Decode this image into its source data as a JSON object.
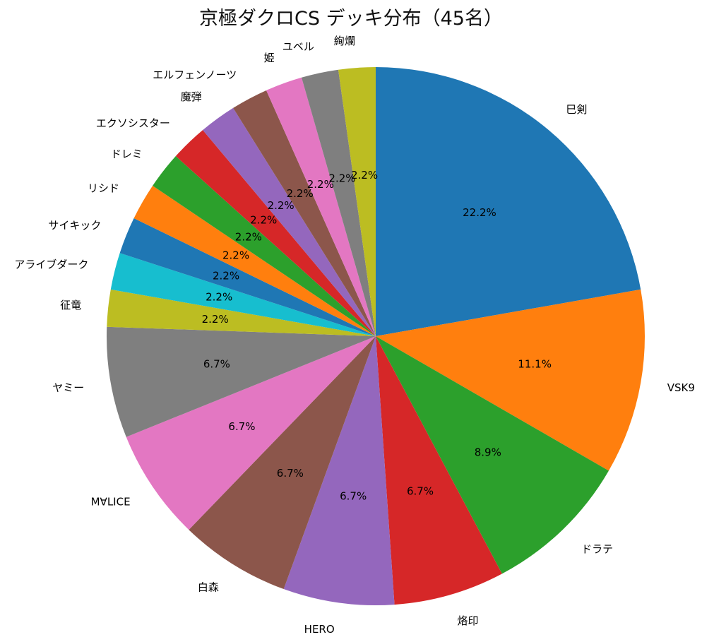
{
  "chart_data": {
    "type": "pie",
    "title": "京極ダクロCS デッキ分布（45名）",
    "total": 45,
    "start": "top",
    "direction": "clockwise",
    "slices": [
      {
        "label": "巳剣",
        "count": 10,
        "percent_label": "22.2%",
        "color": "#1f77b4"
      },
      {
        "label": "VSK9",
        "count": 5,
        "percent_label": "11.1%",
        "color": "#ff7f0e"
      },
      {
        "label": "ドラテ",
        "count": 4,
        "percent_label": "8.9%",
        "color": "#2ca02c"
      },
      {
        "label": "烙印",
        "count": 3,
        "percent_label": "6.7%",
        "color": "#d62728"
      },
      {
        "label": "HERO",
        "count": 3,
        "percent_label": "6.7%",
        "color": "#9467bd"
      },
      {
        "label": "白森",
        "count": 3,
        "percent_label": "6.7%",
        "color": "#8c564b"
      },
      {
        "label": "M∀LICE",
        "count": 3,
        "percent_label": "6.7%",
        "color": "#e377c2"
      },
      {
        "label": "ヤミー",
        "count": 3,
        "percent_label": "6.7%",
        "color": "#7f7f7f"
      },
      {
        "label": "征竜",
        "count": 1,
        "percent_label": "2.2%",
        "color": "#bcbd22"
      },
      {
        "label": "アライブダーク",
        "count": 1,
        "percent_label": "2.2%",
        "color": "#17becf"
      },
      {
        "label": "サイキック",
        "count": 1,
        "percent_label": "2.2%",
        "color": "#1f77b4"
      },
      {
        "label": "リシド",
        "count": 1,
        "percent_label": "2.2%",
        "color": "#ff7f0e"
      },
      {
        "label": "ドレミ",
        "count": 1,
        "percent_label": "2.2%",
        "color": "#2ca02c"
      },
      {
        "label": "エクソシスター",
        "count": 1,
        "percent_label": "2.2%",
        "color": "#d62728"
      },
      {
        "label": "魔弾",
        "count": 1,
        "percent_label": "2.2%",
        "color": "#9467bd"
      },
      {
        "label": "エルフェンノーツ",
        "count": 1,
        "percent_label": "2.2%",
        "color": "#8c564b"
      },
      {
        "label": "姫",
        "count": 1,
        "percent_label": "2.2%",
        "color": "#e377c2"
      },
      {
        "label": "ユベル",
        "count": 1,
        "percent_label": "2.2%",
        "color": "#7f7f7f"
      },
      {
        "label": "絢爛",
        "count": 1,
        "percent_label": "2.2%",
        "color": "#bcbd22"
      }
    ]
  }
}
